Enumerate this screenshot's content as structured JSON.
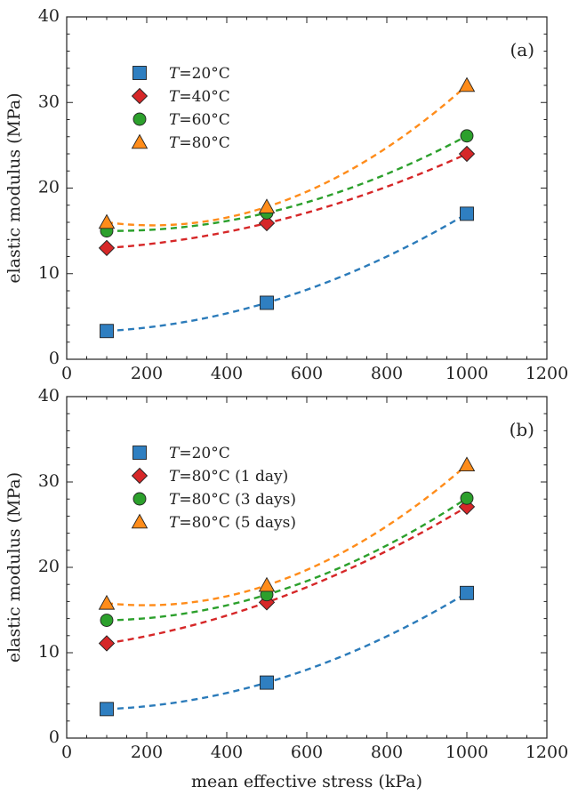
{
  "chart_data": [
    {
      "type": "scatter",
      "panel_label": "(a)",
      "xlabel": "",
      "ylabel": "elastic modulus (MPa)",
      "xlim": [
        0,
        1200
      ],
      "ylim": [
        0,
        40
      ],
      "xticks": [
        0,
        200,
        400,
        600,
        800,
        1000,
        1200
      ],
      "yticks": [
        0,
        10,
        20,
        30,
        40
      ],
      "legend_placement": "upper-left",
      "fit_lines": "dashed quadratic fit per series",
      "series": [
        {
          "name": "T=20°C",
          "marker": "square",
          "color": "#2f7fc1",
          "fit_color": "#2b7bba",
          "x": [
            100,
            500,
            1000
          ],
          "y": [
            3.3,
            6.6,
            17.0
          ]
        },
        {
          "name": "T=40°C",
          "marker": "diamond",
          "color": "#d62728",
          "fit_color": "#d62728",
          "x": [
            100,
            500,
            1000
          ],
          "y": [
            13.0,
            15.9,
            24.0
          ]
        },
        {
          "name": "T=60°C",
          "marker": "circle",
          "color": "#2ca02c",
          "fit_color": "#2ca02c",
          "x": [
            100,
            500,
            1000
          ],
          "y": [
            15.0,
            17.1,
            26.1
          ]
        },
        {
          "name": "T=80°C",
          "marker": "triangle",
          "color": "#ff8c1a",
          "fit_color": "#ff8c1a",
          "x": [
            100,
            500,
            1000
          ],
          "y": [
            16.0,
            17.8,
            32.0
          ]
        }
      ]
    },
    {
      "type": "scatter",
      "panel_label": "(b)",
      "xlabel": "mean effective stress (kPa)",
      "ylabel": "elastic modulus (MPa)",
      "xlim": [
        0,
        1200
      ],
      "ylim": [
        0,
        40
      ],
      "xticks": [
        0,
        200,
        400,
        600,
        800,
        1000,
        1200
      ],
      "yticks": [
        0,
        10,
        20,
        30,
        40
      ],
      "legend_placement": "upper-left",
      "fit_lines": "dashed quadratic fit per series",
      "series": [
        {
          "name": "T=20°C",
          "marker": "square",
          "color": "#2f7fc1",
          "fit_color": "#2b7bba",
          "x": [
            100,
            500,
            1000
          ],
          "y": [
            3.4,
            6.5,
            17.0
          ]
        },
        {
          "name": "T=80°C (1 day)",
          "marker": "diamond",
          "color": "#d62728",
          "fit_color": "#d62728",
          "x": [
            100,
            500,
            1000
          ],
          "y": [
            11.1,
            15.9,
            27.1
          ]
        },
        {
          "name": "T=80°C (3 days)",
          "marker": "circle",
          "color": "#2ca02c",
          "fit_color": "#2ca02c",
          "x": [
            100,
            500,
            1000
          ],
          "y": [
            13.8,
            16.8,
            28.1
          ]
        },
        {
          "name": "T=80°C (5 days)",
          "marker": "triangle",
          "color": "#ff8c1a",
          "fit_color": "#ff8c1a",
          "x": [
            100,
            500,
            1000
          ],
          "y": [
            15.8,
            17.9,
            32.0
          ]
        }
      ]
    }
  ]
}
